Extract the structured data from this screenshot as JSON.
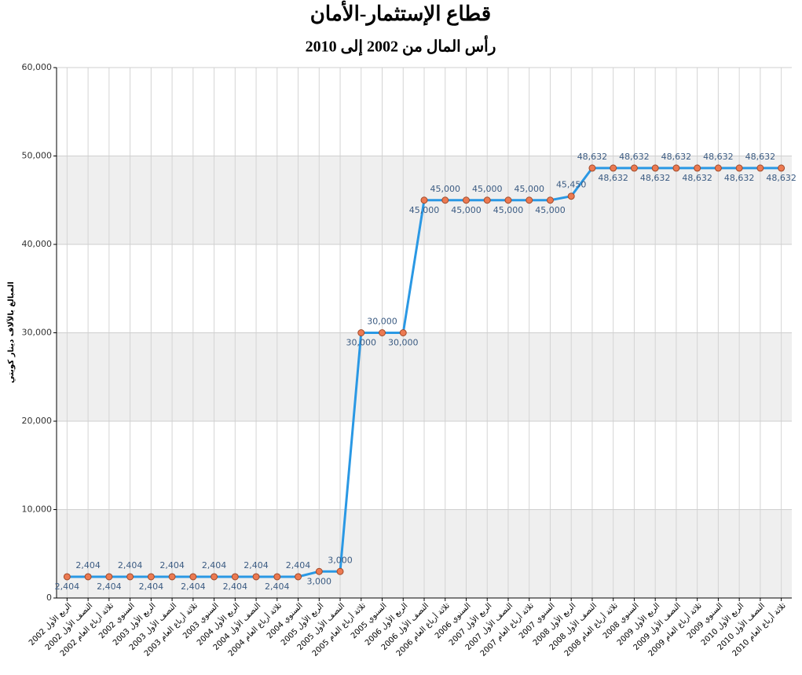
{
  "chart_data": {
    "type": "line",
    "title": "قطاع الإستثمار-الأمان",
    "subtitle": "رأس المال من 2002 إلى 2010",
    "y_label": "المبالغ بالآلاف دينار كويتي",
    "categories": [
      "الربع الأول 2002",
      "النصف الأول 2002",
      "ثلاثة أرباع العام 2002",
      "السنوي 2002",
      "الربع الأول 2003",
      "النصف الأول 2003",
      "ثلاثة أرباع العام 2003",
      "السنوي 2003",
      "الربع الأول 2004",
      "النصف الأول 2004",
      "ثلاثة أرباع العام 2004",
      "السنوي 2004",
      "الربع الأول 2005",
      "النصف الأول 2005",
      "ثلاثة أرباع العام 2005",
      "السنوي 2005",
      "الربع الأول 2006",
      "النصف الأول 2006",
      "ثلاثة أرباع العام 2006",
      "السنوي 2006",
      "الربع الأول 2007",
      "النصف الأول 2007",
      "ثلاثة أرباع العام 2007",
      "السنوي 2007",
      "الربع الأول 2008",
      "النصف الأول 2008",
      "ثلاثة أرباع العام 2008",
      "السنوي 2008",
      "الربع الأول 2009",
      "النصف الأول 2009",
      "ثلاثة أرباع العام 2009",
      "السنوي 2009",
      "الربع الأول 2010",
      "النصف الأول 2010",
      "ثلاثة أرباع العام 2010"
    ],
    "values": [
      2404,
      2404,
      2404,
      2404,
      2404,
      2404,
      2404,
      2404,
      2404,
      2404,
      2404,
      2404,
      3000,
      3000,
      30000,
      30000,
      30000,
      45000,
      45000,
      45000,
      45000,
      45000,
      45000,
      45000,
      45450,
      48632,
      48632,
      48632,
      48632,
      48632,
      48632,
      48632,
      48632,
      48632,
      48632
    ],
    "value_labels": [
      "2,404",
      "2,404",
      "2,404",
      "2,404",
      "2,404",
      "2,404",
      "2,404",
      "2,404",
      "2,404",
      "2,404",
      "2,404",
      "2,404",
      "3,000",
      "3,000",
      "30,000",
      "30,000",
      "30,000",
      "45,000",
      "45,000",
      "45,000",
      "45,000",
      "45,000",
      "45,000",
      "45,000",
      "45,450",
      "48,632",
      "48,632",
      "48,632",
      "48,632",
      "48,632",
      "48,632",
      "48,632",
      "48,632",
      "48,632",
      "48,632"
    ],
    "color": "#2a98e4",
    "marker_color": "#ec7a52",
    "ylim": [
      0,
      60000
    ],
    "yticks": [
      0,
      {
        "value": 10000,
        "label": "10,000"
      },
      {
        "value": 20000,
        "label": "20,000"
      },
      {
        "value": 30000,
        "label": "30,000"
      },
      {
        "value": 40000,
        "label": "40,000"
      },
      {
        "value": 50000,
        "label": "50,000"
      },
      {
        "value": 60000,
        "label": "60,000"
      }
    ],
    "grid": true
  }
}
